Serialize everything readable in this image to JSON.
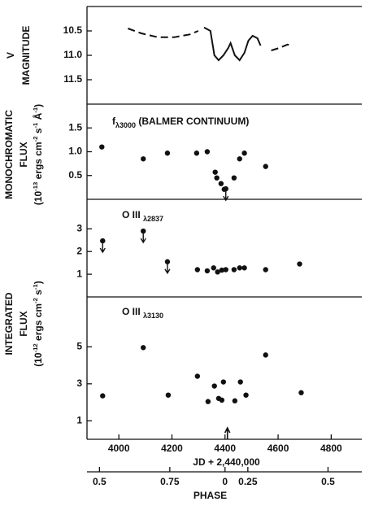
{
  "chart_data": [
    {
      "type": "line",
      "xlim": [
        3880,
        4900
      ],
      "ylim": [
        12.0,
        10.0
      ],
      "yticks": [
        10.5,
        {
          "value": 11.0,
          "label": "11.0"
        },
        11.5
      ],
      "ylabel": [
        "V",
        "MAGNITUDE"
      ],
      "series": [
        {
          "style": "dashed",
          "color": "#111111",
          "x": [
            4034,
            4085,
            4147,
            4208,
            4269,
            4299
          ],
          "values": [
            10.45,
            10.55,
            10.63,
            10.63,
            10.57,
            10.5
          ]
        },
        {
          "style": "solid",
          "color": "#111111",
          "x": [
            4321,
            4345,
            4360,
            4376,
            4394,
            4412,
            4421,
            4437,
            4455,
            4473,
            4488,
            4504,
            4522,
            4534
          ],
          "values": [
            10.43,
            10.5,
            11.0,
            11.1,
            11.0,
            10.85,
            10.75,
            11.0,
            11.1,
            10.95,
            10.7,
            10.6,
            10.65,
            10.8
          ]
        },
        {
          "style": "dashed",
          "color": "#111111",
          "x": [
            4574,
            4604,
            4635,
            4656
          ],
          "values": [
            10.9,
            10.85,
            10.78,
            10.8
          ]
        }
      ]
    },
    {
      "type": "scatter",
      "xlim": [
        3880,
        4900
      ],
      "ylim": [
        0,
        2.0
      ],
      "yticks": [
        0.5,
        {
          "value": 1.0,
          "label": "1.0"
        },
        1.5
      ],
      "ylabel": [
        "MONOCHROMATIC",
        "FLUX"
      ],
      "ylabel_units": [
        {
          "text": "(10"
        },
        {
          "text": "-13",
          "sup": true
        },
        {
          "text": " ergs cm"
        },
        {
          "text": "-2",
          "sup": true
        },
        {
          "text": " s"
        },
        {
          "text": "-1",
          "sup": true
        },
        {
          "text": " Å"
        },
        {
          "text": "-1",
          "sup": true
        },
        {
          "text": ")"
        }
      ],
      "annotation": [
        {
          "text": "f"
        },
        {
          "text": "λ3000",
          "sub": true
        },
        {
          "text": " (BALMER CONTINUUM)"
        }
      ],
      "color": "#111111",
      "x": [
        3936,
        4092,
        4183,
        4293,
        4333,
        4363,
        4369,
        4385,
        4397,
        4403,
        4434,
        4455,
        4473,
        4553
      ],
      "values": [
        1.1,
        0.85,
        0.97,
        0.97,
        1.0,
        0.57,
        0.45,
        0.33,
        0.21,
        0.22,
        0.45,
        0.85,
        0.97,
        0.69
      ],
      "upper_limit": [
        false,
        false,
        false,
        false,
        false,
        false,
        false,
        false,
        false,
        true,
        false,
        false,
        false,
        false
      ]
    },
    {
      "type": "scatter",
      "xlim": [
        3880,
        4900
      ],
      "ylim": [
        0,
        4.3
      ],
      "yticks": [
        1,
        2,
        3
      ],
      "annotation": [
        {
          "text": "O III "
        },
        {
          "text": "λ2837",
          "sub": true
        }
      ],
      "color": "#111111",
      "x": [
        3939,
        4092,
        4183,
        4296,
        4333,
        4357,
        4372,
        4388,
        4403,
        4434,
        4455,
        4473,
        4553,
        4681
      ],
      "values": [
        2.47,
        2.9,
        1.55,
        1.2,
        1.15,
        1.28,
        1.1,
        1.18,
        1.2,
        1.2,
        1.28,
        1.28,
        1.2,
        1.45
      ],
      "upper_limit": [
        true,
        true,
        true,
        false,
        false,
        false,
        false,
        false,
        false,
        false,
        false,
        false,
        false,
        false
      ]
    },
    {
      "type": "scatter",
      "xlim": [
        3880,
        4900
      ],
      "ylim": [
        0,
        7.7
      ],
      "yticks": [
        1,
        3,
        5
      ],
      "ylabel": [
        "INTEGRATED",
        "FLUX"
      ],
      "ylabel_units": [
        {
          "text": "(10"
        },
        {
          "text": "-12",
          "sup": true
        },
        {
          "text": " ergs cm"
        },
        {
          "text": "-2",
          "sup": true
        },
        {
          "text": " s"
        },
        {
          "text": "-1",
          "sup": true
        },
        {
          "text": ")"
        }
      ],
      "annotation": [
        {
          "text": "O III "
        },
        {
          "text": "λ3130",
          "sub": true
        }
      ],
      "color": "#111111",
      "x": [
        3939,
        4092,
        4186,
        4296,
        4336,
        4360,
        4376,
        4388,
        4394,
        4437,
        4458,
        4479,
        4553,
        4687
      ],
      "values": [
        2.35,
        4.96,
        2.39,
        3.41,
        2.04,
        2.88,
        2.21,
        2.12,
        3.1,
        2.08,
        3.1,
        2.39,
        4.56,
        2.52
      ],
      "marker_x": [
        4409
      ],
      "xticks": [
        4000,
        4200,
        4400,
        4600,
        4800
      ],
      "xlabel": "JD + 2,440,000",
      "phase_ticks": [
        {
          "value": 3927,
          "label": "0.5"
        },
        {
          "value": 4192,
          "label": "0.75"
        },
        {
          "value": 4400,
          "label": "0"
        },
        {
          "value": 4486,
          "label": "0.25"
        },
        {
          "value": 4788,
          "label": "0.5"
        }
      ],
      "phase_label": "PHASE"
    }
  ]
}
